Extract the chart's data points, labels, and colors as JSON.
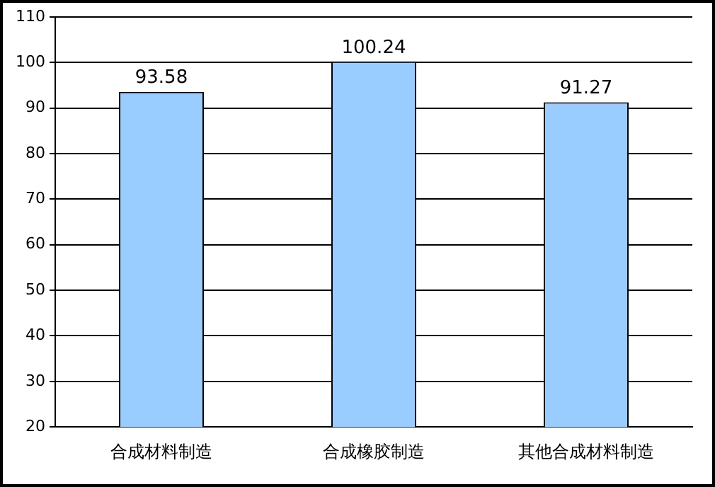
{
  "chart_data": {
    "type": "bar",
    "categories": [
      "合成材料制造",
      "合成橡胶制造",
      "其他合成材料制造"
    ],
    "values": [
      93.58,
      100.24,
      91.27
    ],
    "color": "#99ccff",
    "ylim": [
      20,
      110
    ],
    "yticks": [
      20,
      30,
      40,
      50,
      60,
      70,
      80,
      90,
      100,
      110
    ],
    "grid": "y",
    "data_labels": true
  }
}
